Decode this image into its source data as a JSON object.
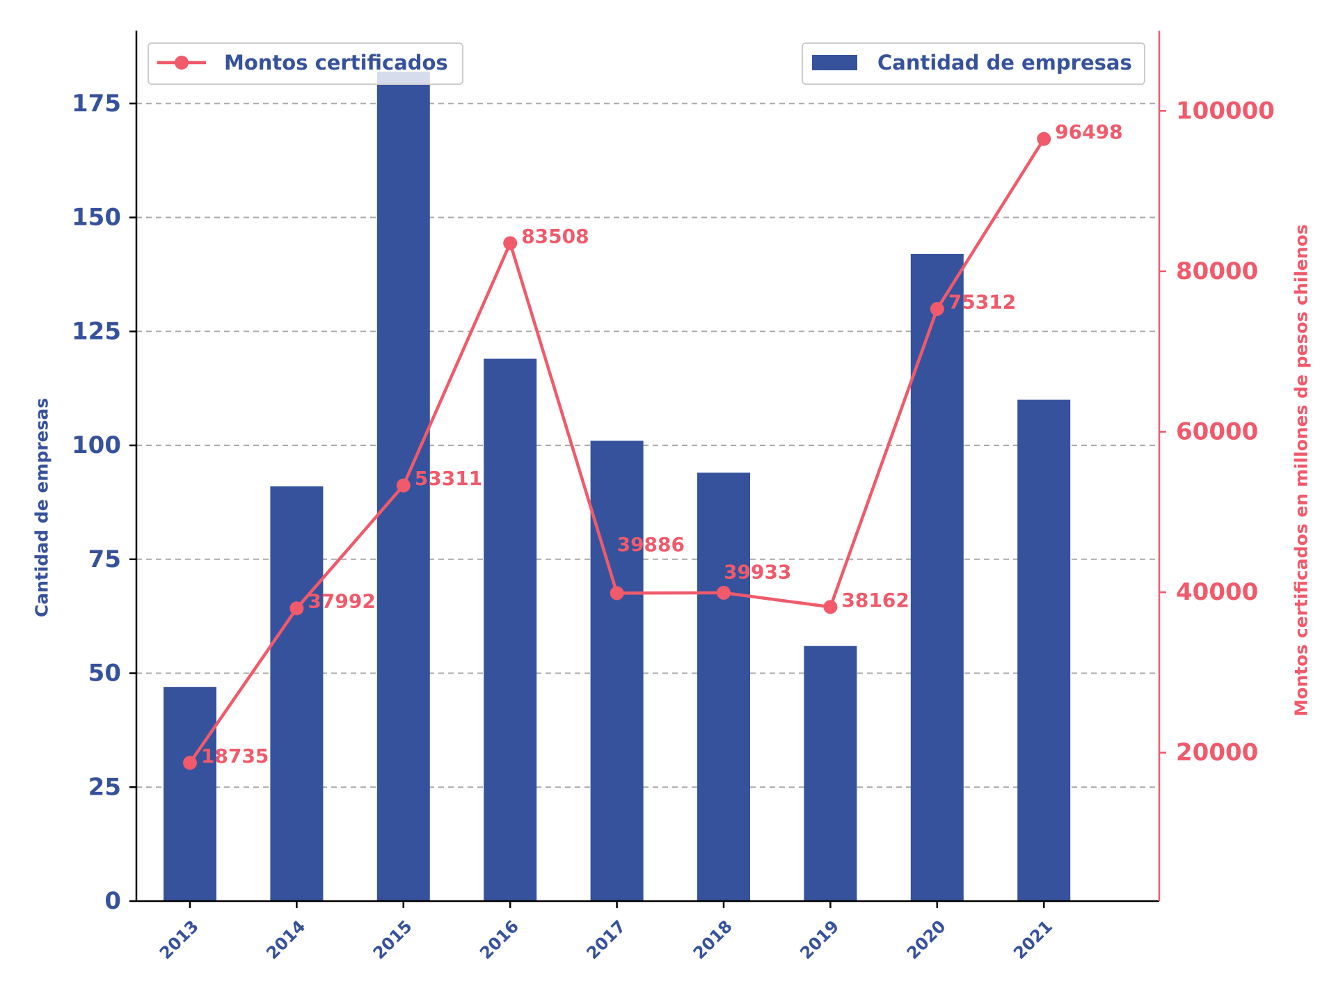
{
  "chart_data": {
    "type": "bar",
    "categories": [
      "2013",
      "2014",
      "2015",
      "2016",
      "2017",
      "2018",
      "2019",
      "2020",
      "2021"
    ],
    "series": [
      {
        "name": "Cantidad de empresas",
        "type": "bar",
        "axis": "left",
        "values": [
          47,
          91,
          182,
          119,
          101,
          94,
          56,
          142,
          110
        ]
      },
      {
        "name": "Montos certificados",
        "type": "line",
        "axis": "right",
        "values": [
          18735,
          37992,
          53311,
          83508,
          39886,
          39933,
          38162,
          75312,
          96498
        ],
        "data_labels": [
          "18735",
          "37992",
          "53311",
          "83508",
          "39886",
          "39933",
          "38162",
          "75312",
          "96498"
        ]
      }
    ],
    "ylabel": "Cantidad de empresas",
    "y2label": "Montos certificados en millones de pesos chilenos",
    "ylim": [
      0,
      191
    ],
    "y2lim": [
      1500,
      110000
    ],
    "yticks": [
      "0",
      "25",
      "50",
      "75",
      "100",
      "125",
      "150",
      "175"
    ],
    "y2ticks": [
      "20000",
      "40000",
      "60000",
      "80000",
      "100000"
    ],
    "grid": "horizontal dashed",
    "legend": [
      {
        "label": "Montos certificados",
        "position": "top-left"
      },
      {
        "label": "Cantidad de empresas",
        "position": "top-right"
      }
    ],
    "colors": {
      "bar": "#36529c",
      "line": "#f05a6a",
      "grid": "#aaaaaa",
      "axis": "#000000"
    }
  }
}
